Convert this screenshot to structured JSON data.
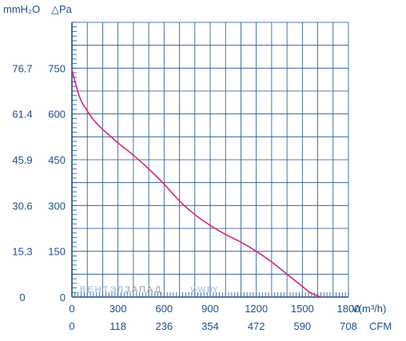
{
  "chart_data": {
    "type": "line",
    "y_label_left": "mmH₂O",
    "y_label_right": "△Pa",
    "x_unit_primary": "V(m³/h)",
    "x_unit_secondary": "CFM",
    "x_ticks_primary": [
      "0",
      "300",
      "600",
      "900",
      "1200",
      "1500",
      "1800"
    ],
    "x_ticks_secondary": [
      "0",
      "118",
      "236",
      "354",
      "472",
      "590",
      "708"
    ],
    "y_ticks_pa": [
      "0",
      "150",
      "300",
      "450",
      "600",
      "750"
    ],
    "y_ticks_mmh2o": [
      "0",
      "15.3",
      "30.6",
      "45.9",
      "61.4",
      "76.7"
    ],
    "xlim": [
      0,
      1800
    ],
    "ylim": [
      0,
      900
    ],
    "grid": true,
    "line_color": "#d4267f",
    "axis_color": "#1d4f91",
    "series": [
      {
        "x": [
          0,
          50,
          100,
          150,
          200,
          300,
          400,
          500,
          600,
          700,
          800,
          900,
          1000,
          1100,
          1200,
          1300,
          1400,
          1500,
          1550,
          1620
        ],
        "y": [
          745,
          655,
          610,
          575,
          550,
          505,
          465,
          420,
          370,
          315,
          270,
          235,
          205,
          180,
          150,
          115,
          75,
          35,
          15,
          0
        ]
      }
    ]
  },
  "watermark": {
    "part1": "ВЕНТЭЛ",
    "part2": "ЗАПАД",
    "part3": "V-W.BY"
  }
}
